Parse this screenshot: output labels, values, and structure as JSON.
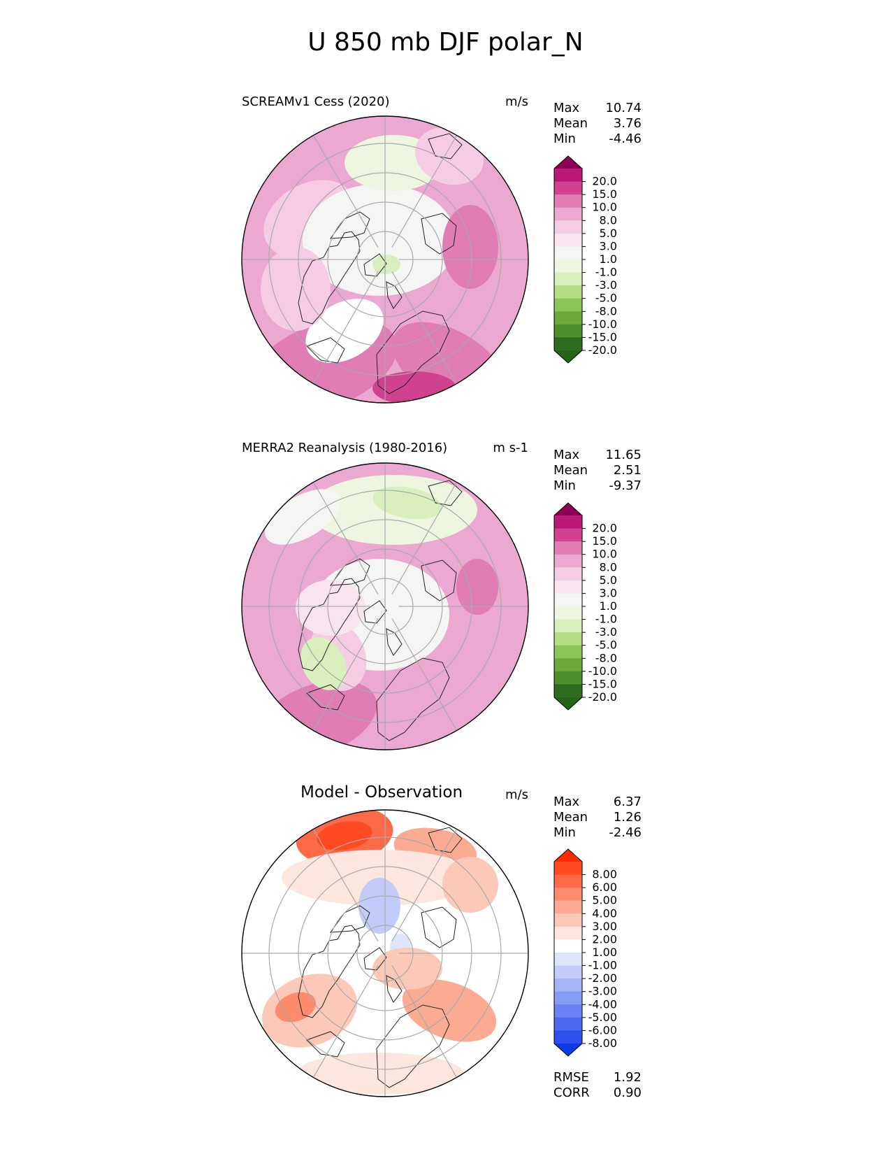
{
  "title": "U 850 mb DJF polar_N",
  "panels": [
    {
      "name": "model",
      "title": "SCREAMv1 Cess (2020)",
      "units": "m/s",
      "stats": [
        {
          "label": "Max",
          "value": "10.74"
        },
        {
          "label": "Mean",
          "value": "3.76"
        },
        {
          "label": "Min",
          "value": "-4.46"
        }
      ],
      "colorbar": {
        "labels": [
          "20.0",
          "15.0",
          "10.0",
          "8.0",
          "5.0",
          "3.0",
          "1.0",
          "-1.0",
          "-3.0",
          "-5.0",
          "-8.0",
          "-10.0",
          "-15.0",
          "-20.0"
        ],
        "colors": [
          "#8e0152",
          "#b9177a",
          "#d0428f",
          "#e07db5",
          "#eba8d0",
          "#f5cce4",
          "#f8e4ef",
          "#f5f5f3",
          "#eef6e0",
          "#d9efbd",
          "#b5dd83",
          "#8cc458",
          "#6aa93a",
          "#4d8f2a",
          "#2d6c1f",
          "#276419"
        ]
      }
    },
    {
      "name": "obs",
      "title": "MERRA2 Reanalysis (1980-2016)",
      "units": "m s-1",
      "stats": [
        {
          "label": "Max",
          "value": "11.65"
        },
        {
          "label": "Mean",
          "value": "2.51"
        },
        {
          "label": "Min",
          "value": "-9.37"
        }
      ],
      "colorbar": {
        "labels": [
          "20.0",
          "15.0",
          "10.0",
          "8.0",
          "5.0",
          "3.0",
          "1.0",
          "-1.0",
          "-3.0",
          "-5.0",
          "-8.0",
          "-10.0",
          "-15.0",
          "-20.0"
        ],
        "colors": [
          "#8e0152",
          "#b9177a",
          "#d0428f",
          "#e07db5",
          "#eba8d0",
          "#f5cce4",
          "#f8e4ef",
          "#f5f5f3",
          "#eef6e0",
          "#d9efbd",
          "#b5dd83",
          "#8cc458",
          "#6aa93a",
          "#4d8f2a",
          "#2d6c1f",
          "#276419"
        ]
      }
    },
    {
      "name": "diff",
      "title": "Model - Observation",
      "units": "m/s",
      "stats": [
        {
          "label": "Max",
          "value": "6.37"
        },
        {
          "label": "Mean",
          "value": "1.26"
        },
        {
          "label": "Min",
          "value": "-2.46"
        }
      ],
      "extra_stats": [
        {
          "label": "RMSE",
          "value": "1.92"
        },
        {
          "label": "CORR",
          "value": "0.90"
        }
      ],
      "colorbar": {
        "labels": [
          "8.00",
          "6.00",
          "5.00",
          "4.00",
          "3.00",
          "2.00",
          "1.00",
          "-1.00",
          "-2.00",
          "-3.00",
          "-4.00",
          "-5.00",
          "-6.00",
          "-8.00"
        ],
        "colors": [
          "#ff2a00",
          "#ff4a22",
          "#fd6a48",
          "#fc8a6c",
          "#fcab93",
          "#fcc9b9",
          "#fde6dd",
          "#ffffff",
          "#dde5fb",
          "#c1cdf8",
          "#a4b4f6",
          "#869bf4",
          "#6a82f2",
          "#4d69f0",
          "#2f50ee",
          "#0a3ce6"
        ]
      }
    }
  ]
}
